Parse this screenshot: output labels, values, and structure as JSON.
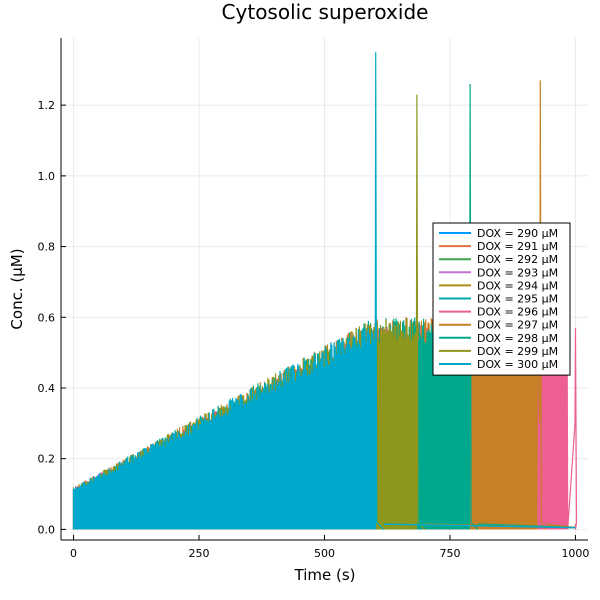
{
  "chart_data": {
    "type": "line",
    "title": "Cytosolic superoxide",
    "xlabel": "Time (s)",
    "ylabel": "Conc. (μM)",
    "xlim": [
      -25,
      1025
    ],
    "ylim": [
      -0.03,
      1.39
    ],
    "xticks": [
      0,
      250,
      500,
      750,
      1000
    ],
    "xtick_labels": [
      "0",
      "250",
      "500",
      "750",
      "1000"
    ],
    "yticks": [
      0.0,
      0.2,
      0.4,
      0.6,
      0.8,
      1.0,
      1.2
    ],
    "ytick_labels": [
      "0.0",
      "0.2",
      "0.4",
      "0.6",
      "0.8",
      "1.0",
      "1.2"
    ],
    "grid": true,
    "legend_position": "right",
    "series": [
      {
        "name": "DOX = 290 μM",
        "color": "#009AFA",
        "end_time": 1000,
        "peak_time": 1000,
        "peak_value": 0.0,
        "envelope": [
          0.12,
          0.56
        ]
      },
      {
        "name": "DOX = 291 μM",
        "color": "#E36F47",
        "end_time": 1000,
        "peak_time": 1000,
        "peak_value": 0.0,
        "envelope": [
          0.12,
          0.56
        ]
      },
      {
        "name": "DOX = 292 μM",
        "color": "#3EA44E",
        "end_time": 1000,
        "peak_time": 1000,
        "peak_value": 0.0,
        "envelope": [
          0.12,
          0.56
        ]
      },
      {
        "name": "DOX = 293 μM",
        "color": "#C371D2",
        "end_time": 1000,
        "peak_time": 1000,
        "peak_value": 0.0,
        "envelope": [
          0.12,
          0.56
        ]
      },
      {
        "name": "DOX = 294 μM",
        "color": "#AC8E18",
        "end_time": 1000,
        "peak_time": 1000,
        "peak_value": 0.0,
        "envelope": [
          0.12,
          0.56
        ]
      },
      {
        "name": "DOX = 295 μM",
        "color": "#00A9AD",
        "end_time": 1000,
        "peak_time": 1000,
        "peak_value": 0.0,
        "envelope": [
          0.12,
          0.56
        ]
      },
      {
        "name": "DOX = 296 μM",
        "color": "#ED5E93",
        "end_time": 1000,
        "peak_time": 1000,
        "peak_value": 0.57,
        "envelope": [
          0.12,
          0.58
        ]
      },
      {
        "name": "DOX = 297 μM",
        "color": "#C68125",
        "end_time": 940,
        "peak_time": 930,
        "peak_value": 1.27,
        "envelope": [
          0.12,
          0.6
        ]
      },
      {
        "name": "DOX = 298 μM",
        "color": "#00A98D",
        "end_time": 805,
        "peak_time": 790,
        "peak_value": 1.26,
        "envelope": [
          0.12,
          0.6
        ]
      },
      {
        "name": "DOX = 299 μM",
        "color": "#8E971D",
        "end_time": 700,
        "peak_time": 684,
        "peak_value": 1.23,
        "envelope": [
          0.12,
          0.6
        ]
      },
      {
        "name": "DOX = 300 μM",
        "color": "#00A8CB",
        "end_time": 618,
        "peak_time": 602,
        "peak_value": 1.35,
        "envelope": [
          0.12,
          0.6
        ]
      }
    ]
  }
}
